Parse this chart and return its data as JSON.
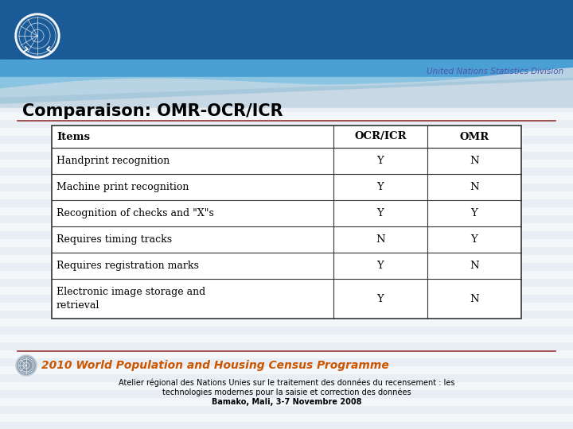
{
  "title": "Comparaison: OMR-OCR/ICR",
  "slide_bg": "#ffffff",
  "table_headers": [
    "Items",
    "OCR/ICR",
    "OMR"
  ],
  "table_rows": [
    [
      "Handprint recognition",
      "Y",
      "N"
    ],
    [
      "Machine print recognition",
      "Y",
      "N"
    ],
    [
      "Recognition of checks and \"X\"s",
      "Y",
      "Y"
    ],
    [
      "Requires timing tracks",
      "N",
      "Y"
    ],
    [
      "Requires registration marks",
      "Y",
      "N"
    ],
    [
      "Electronic image storage and\nretrieval",
      "Y",
      "N"
    ]
  ],
  "footer_line1": "Atelier régional des Nations Unies sur le traitement des données du recensement : les",
  "footer_line2": "technologies modernes pour la saisie et correction des données",
  "footer_line3": "Bamako, Mali, 3-7 Novembre 2008",
  "census_text": "2010 World Population and Housing Census Programme",
  "un_text": "United Nations Statistics Division",
  "census_color": "#cc5500",
  "un_color": "#5555aa",
  "divider_color": "#993333",
  "stripe_color1": "#e8eef3",
  "stripe_color2": "#f4f7fa",
  "top_dark_blue": "#1a5a96",
  "top_mid_blue": "#4a9fd4",
  "top_light_blue": "#8ac4e0",
  "top_gray_wave": "#c8d8e4",
  "top_white_wave": "#dde8ef"
}
